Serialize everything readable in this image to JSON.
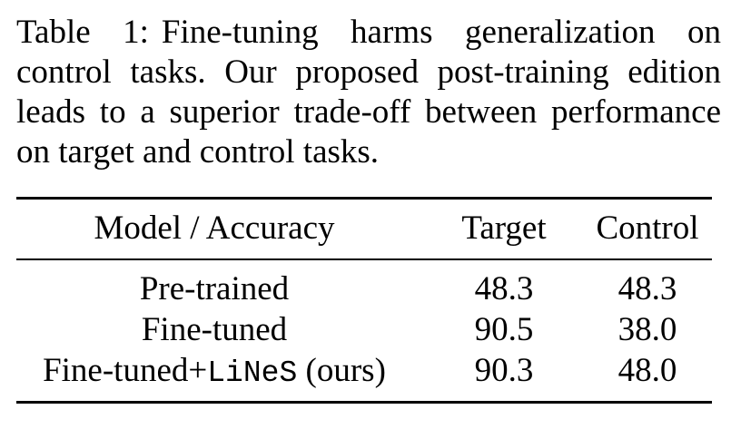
{
  "caption": {
    "label": "Table 1:",
    "text": "Fine-tuning harms generalization on control tasks. Our proposed post-training edition leads to a superior trade-off between performance on target and control tasks."
  },
  "table": {
    "headers": {
      "model": "Model / Accuracy",
      "target": "Target",
      "control": "Control"
    },
    "rows": [
      {
        "model": "Pre-trained",
        "target": "48.3",
        "control": "48.3"
      },
      {
        "model": "Fine-tuned",
        "target": "90.5",
        "control": "38.0"
      },
      {
        "model_prefix": "Fine-tuned+",
        "model_method": "LiNeS",
        "model_suffix": " (ours)",
        "target": "90.3",
        "control": "48.0"
      }
    ]
  }
}
